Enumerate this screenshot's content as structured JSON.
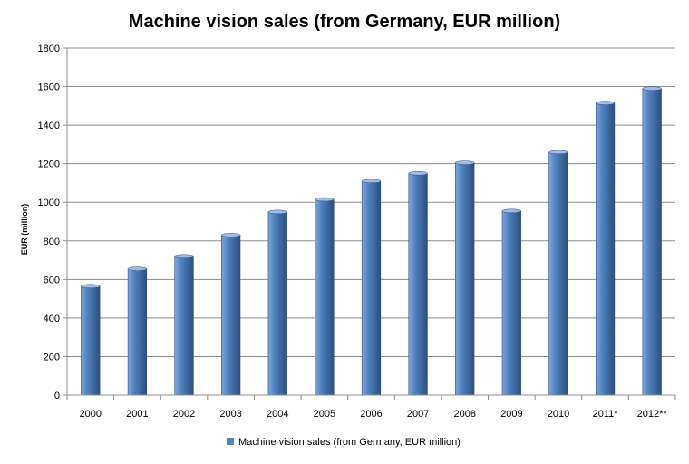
{
  "chart_data": {
    "type": "bar",
    "title": "Machine vision sales (from Germany, EUR million)",
    "xlabel": "",
    "ylabel": "EUR (million)",
    "ylim": [
      0,
      1800
    ],
    "yticks": [
      0,
      200,
      400,
      600,
      800,
      1000,
      1200,
      1400,
      1600,
      1800
    ],
    "grid": true,
    "legend_position": "bottom",
    "categories": [
      "2000",
      "2001",
      "2002",
      "2003",
      "2004",
      "2005",
      "2006",
      "2007",
      "2008",
      "2009",
      "2010",
      "2011*",
      "2012**"
    ],
    "series": [
      {
        "name": "Machine vision sales (from Germany, EUR million)",
        "values": [
          565,
          655,
          720,
          830,
          950,
          1015,
          1110,
          1150,
          1205,
          955,
          1260,
          1515,
          1590
        ]
      }
    ],
    "colors": {
      "bar_light": "#7fa6dc",
      "bar_mid": "#4f81bd",
      "bar_dark": "#2c4f7f",
      "bar_top": "#9dbde8",
      "gridline": "#8c8c8c",
      "axis": "#8c8c8c"
    }
  }
}
